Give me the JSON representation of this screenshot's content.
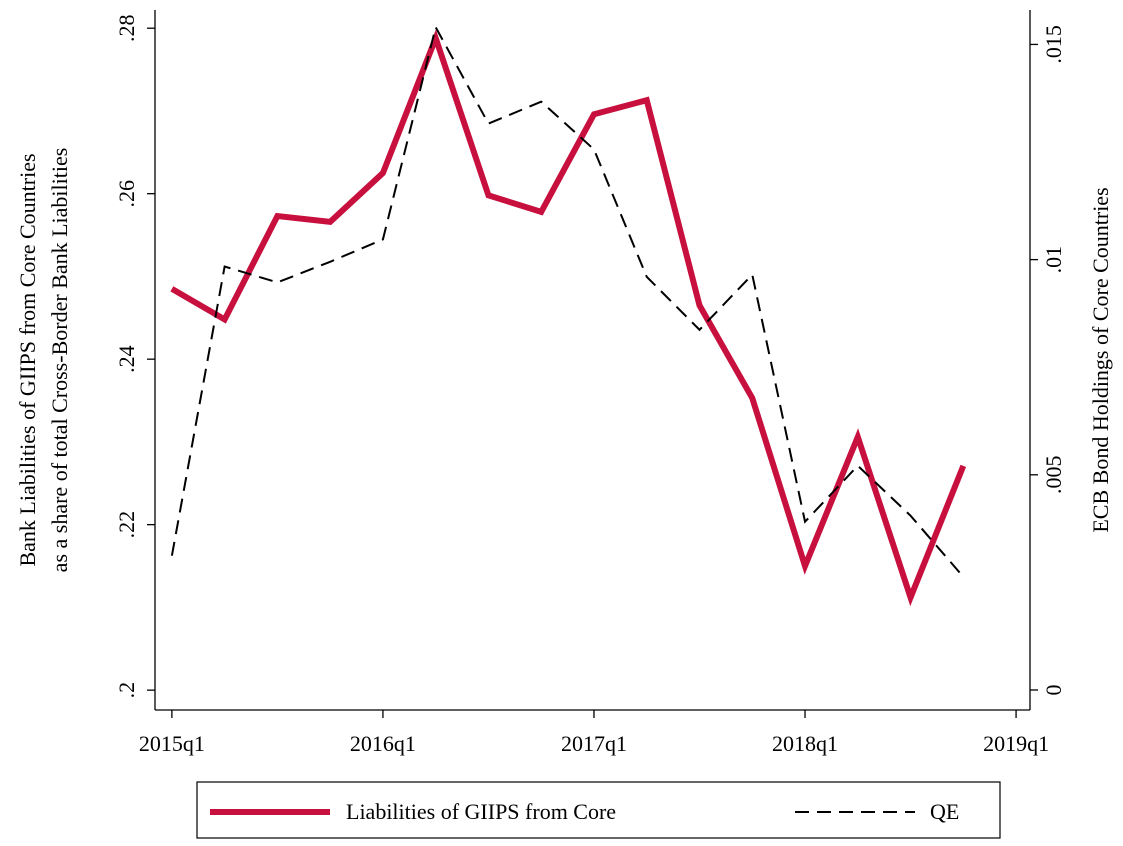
{
  "chart_data": {
    "type": "line",
    "ylabel": [
      "Bank Liabilities of GIIPS from Core Countries",
      "as a share of total Cross-Border Bank Liabilities"
    ],
    "y2label": "ECB Bond Holdings of Core Countries",
    "x": [
      2015,
      2015.25,
      2015.5,
      2015.75,
      2016,
      2016.25,
      2016.5,
      2016.75,
      2017,
      2017.25,
      2017.5,
      2017.75,
      2018,
      2018.25,
      2018.5,
      2018.75
    ],
    "xlim": [
      2014.92,
      2019.066
    ],
    "xticks": [
      {
        "value": 2015,
        "label": "2015q1"
      },
      {
        "value": 2016,
        "label": "2016q1"
      },
      {
        "value": 2017,
        "label": "2017q1"
      },
      {
        "value": 2018,
        "label": "2018q1"
      },
      {
        "value": 2019,
        "label": "2019q1"
      }
    ],
    "ylim": [
      0.1976,
      0.2822
    ],
    "yticks": [
      {
        "value": 0.2,
        "label": ".2"
      },
      {
        "value": 0.22,
        "label": ".22"
      },
      {
        "value": 0.24,
        "label": ".24"
      },
      {
        "value": 0.26,
        "label": ".26"
      },
      {
        "value": 0.28,
        "label": ".28"
      }
    ],
    "y2lim": [
      -0.000465,
      0.0158
    ],
    "y2ticks": [
      0,
      {
        "value": 0.005,
        "label": ".005"
      },
      {
        "value": 0.01,
        "label": ".01"
      },
      {
        "value": 0.015,
        "label": ".015"
      }
    ],
    "series": [
      {
        "name": "Liabilities of GIIPS from Core",
        "color": "#c8103e",
        "dash": "solid",
        "values": [
          0.2485,
          0.2448,
          0.2573,
          0.2566,
          0.2625,
          0.2788,
          0.2598,
          0.2578,
          0.2696,
          0.2713,
          0.2465,
          0.2353,
          0.215,
          0.2306,
          0.2112,
          0.2271
        ]
      },
      {
        "name": "QE",
        "color": "#000000",
        "dash": "dashed",
        "axis": "y2",
        "values": [
          0.00312,
          0.00984,
          0.00947,
          0.00995,
          0.01047,
          0.0154,
          0.01316,
          0.01367,
          0.01256,
          0.0096,
          0.00837,
          0.00965,
          0.00391,
          0.00521,
          0.00405,
          0.00263
        ]
      }
    ]
  }
}
